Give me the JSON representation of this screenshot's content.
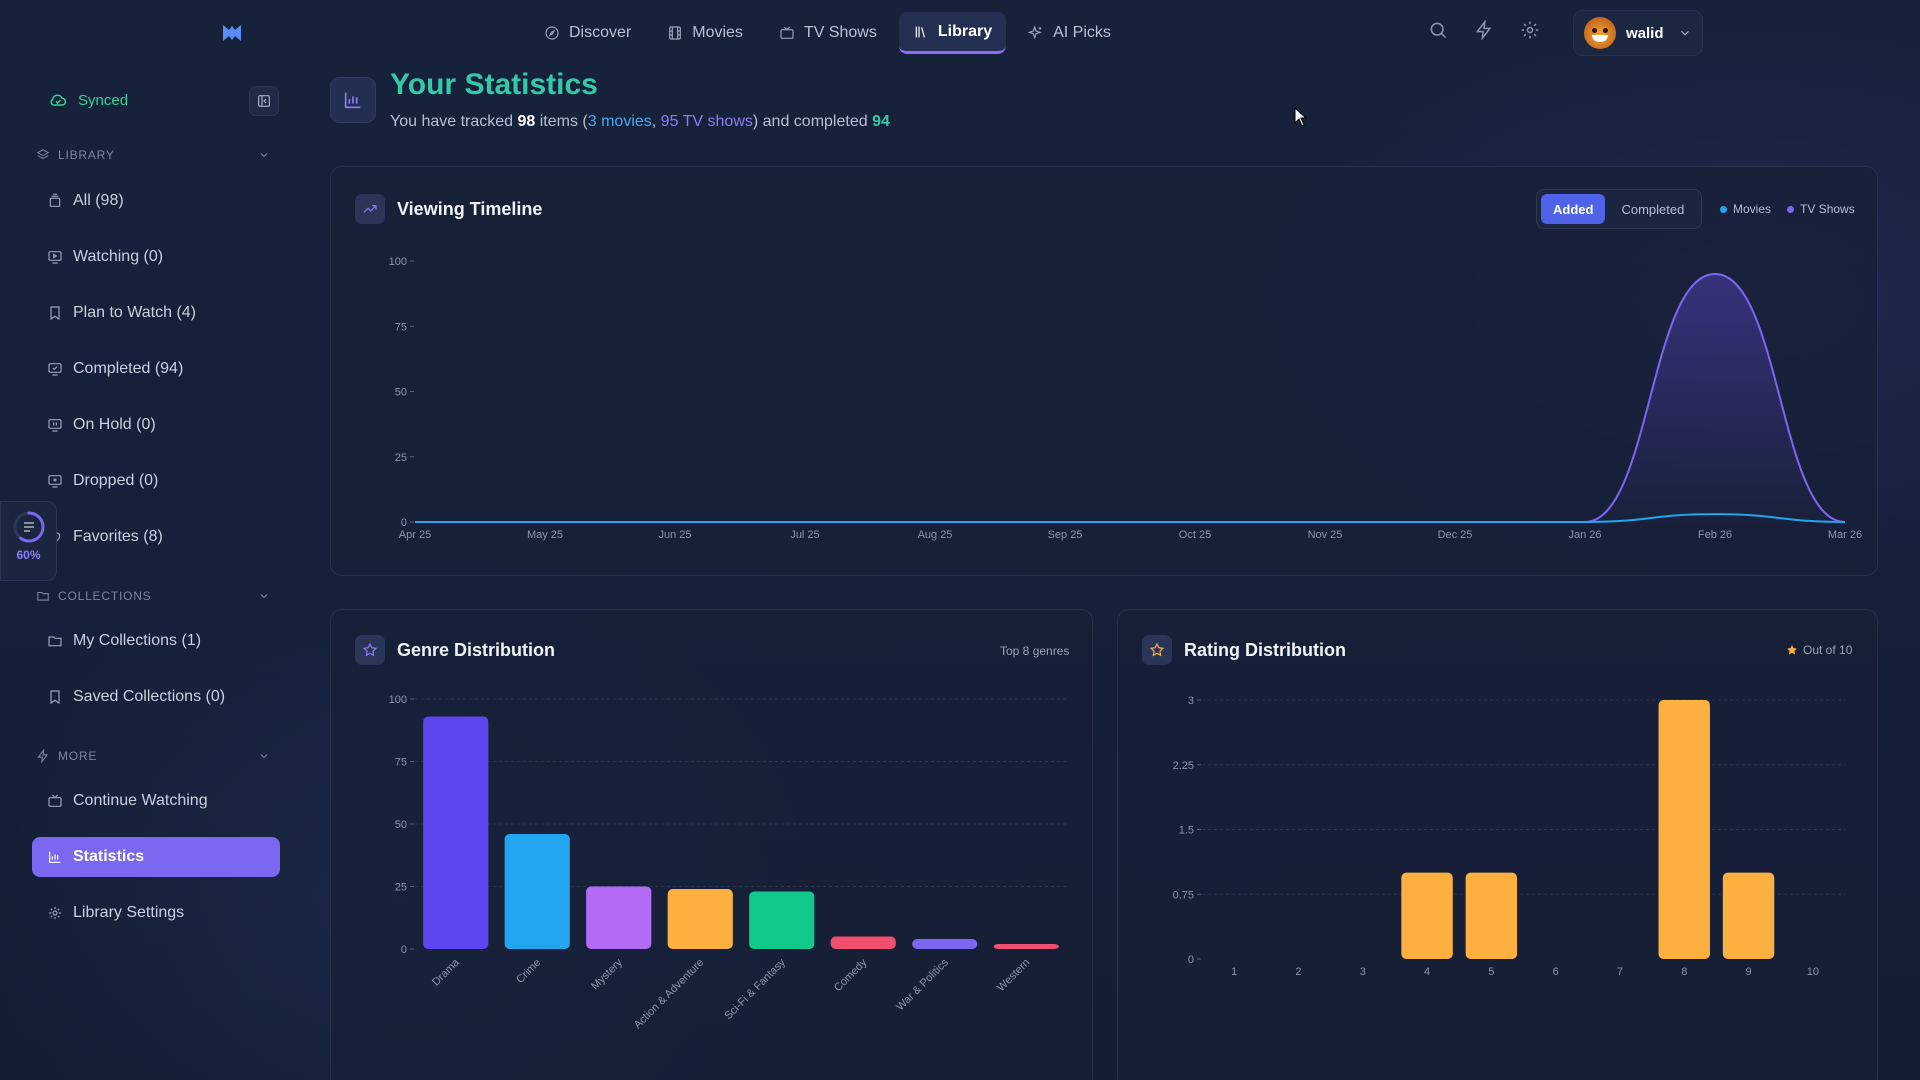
{
  "nav": {
    "tabs": [
      {
        "label": "Discover",
        "icon": "compass-icon"
      },
      {
        "label": "Movies",
        "icon": "film-icon"
      },
      {
        "label": "TV Shows",
        "icon": "tv-icon"
      },
      {
        "label": "Library",
        "icon": "library-icon",
        "active": true
      },
      {
        "label": "AI Picks",
        "icon": "sparkles-icon"
      }
    ],
    "user": "walid"
  },
  "sidebar": {
    "synced": "Synced",
    "library_header": "LIBRARY",
    "library_items": [
      "All (98)",
      "Watching (0)",
      "Plan to Watch (4)",
      "Completed (94)",
      "On Hold (0)",
      "Dropped (0)",
      "Favorites (8)"
    ],
    "collections_header": "COLLECTIONS",
    "collection_items": [
      "My Collections (1)",
      "Saved Collections (0)"
    ],
    "more_header": "MORE",
    "more_items": [
      "Continue Watching",
      "Statistics",
      "Library Settings"
    ],
    "progress": "60%"
  },
  "header": {
    "title": "Your Statistics",
    "sub_prefix": "You have tracked ",
    "total": "98",
    "sub_items": " items (",
    "movies": "3 movies",
    "sep": ", ",
    "shows": "95 TV shows",
    "sub_mid": ") and completed ",
    "completed": "94"
  },
  "timeline": {
    "title": "Viewing Timeline",
    "toggle": [
      "Added",
      "Completed"
    ],
    "legend": [
      "Movies",
      "TV Shows"
    ]
  },
  "genre": {
    "title": "Genre Distribution",
    "note": "Top 8 genres"
  },
  "rating": {
    "title": "Rating Distribution",
    "note": "Out of 10"
  },
  "colors": {
    "movies": "#22a6f2",
    "tv": "#7c67f0",
    "accent": "#34c9a8",
    "orange": "#fbb040"
  },
  "chart_data": [
    {
      "type": "area",
      "title": "Viewing Timeline",
      "categories": [
        "Apr 25",
        "May 25",
        "Jun 25",
        "Jul 25",
        "Aug 25",
        "Sep 25",
        "Oct 25",
        "Nov 25",
        "Dec 25",
        "Jan 26",
        "Feb 26",
        "Mar 26"
      ],
      "series": [
        {
          "name": "Movies",
          "values": [
            0,
            0,
            0,
            0,
            0,
            0,
            0,
            0,
            0,
            0,
            3,
            0
          ]
        },
        {
          "name": "TV Shows",
          "values": [
            0,
            0,
            0,
            0,
            0,
            0,
            0,
            0,
            0,
            0,
            95,
            0
          ]
        }
      ],
      "ylim": [
        0,
        100
      ],
      "yticks": [
        0,
        25,
        50,
        75,
        100
      ],
      "legend": "top-right"
    },
    {
      "type": "bar",
      "title": "Genre Distribution",
      "categories": [
        "Drama",
        "Crime",
        "Mystery",
        "Action & Adventure",
        "Sci-Fi & Fantasy",
        "Comedy",
        "War & Politics",
        "Western"
      ],
      "values": [
        93,
        46,
        25,
        24,
        23,
        5,
        4,
        2
      ],
      "colors": [
        "#5b46f0",
        "#22a6f2",
        "#b36bf5",
        "#fbb040",
        "#10c98a",
        "#f0506e",
        "#7c67f0",
        "#f0506e"
      ],
      "ylim": [
        0,
        100
      ],
      "yticks": [
        0,
        25,
        50,
        75,
        100
      ]
    },
    {
      "type": "bar",
      "title": "Rating Distribution",
      "categories": [
        "1",
        "2",
        "3",
        "4",
        "5",
        "6",
        "7",
        "8",
        "9",
        "10"
      ],
      "values": [
        0,
        0,
        0,
        1,
        1,
        0,
        0,
        3,
        1,
        0
      ],
      "ylim": [
        0,
        3
      ],
      "yticks": [
        "0",
        "0.75",
        "1.5",
        "2.25",
        "3"
      ]
    }
  ]
}
